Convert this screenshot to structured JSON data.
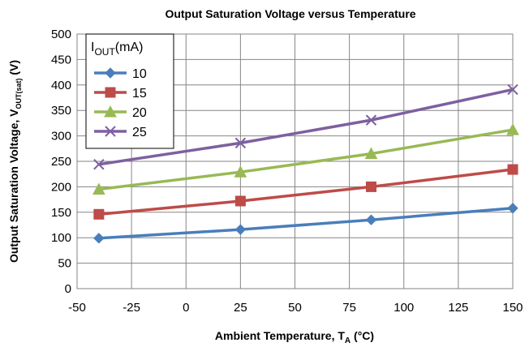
{
  "chart_data": {
    "type": "line",
    "title": "Output Saturation Voltage versus Temperature",
    "xlabel": "Ambient Temperature, T",
    "xlabel_sub": "A",
    "xlabel_unit": " (°C)",
    "ylabel": "Output Saturation Voltage, V",
    "ylabel_sub": "OUT(sat)",
    "ylabel_unit": " (V)",
    "xlim": [
      -50,
      150
    ],
    "ylim": [
      0,
      500
    ],
    "xticks": [
      -50,
      -25,
      0,
      25,
      50,
      75,
      100,
      125,
      150
    ],
    "yticks": [
      0,
      50,
      100,
      150,
      200,
      250,
      300,
      350,
      400,
      450,
      500
    ],
    "grid": true,
    "legend": {
      "placement": "top-left",
      "title": "I",
      "title_sub": "OUT",
      "title_unit": "(mA)"
    },
    "x": [
      -40,
      25,
      85,
      150
    ],
    "series": [
      {
        "name": "10",
        "values": [
          99,
          116,
          135,
          158
        ],
        "color": "#4a7ebb",
        "marker": "diamond"
      },
      {
        "name": "15",
        "values": [
          146,
          172,
          200,
          234
        ],
        "color": "#be4b48",
        "marker": "square"
      },
      {
        "name": "20",
        "values": [
          195,
          229,
          265,
          312
        ],
        "color": "#98b954",
        "marker": "triangle"
      },
      {
        "name": "25",
        "values": [
          244,
          286,
          331,
          391
        ],
        "color": "#7d60a0",
        "marker": "x"
      }
    ]
  }
}
